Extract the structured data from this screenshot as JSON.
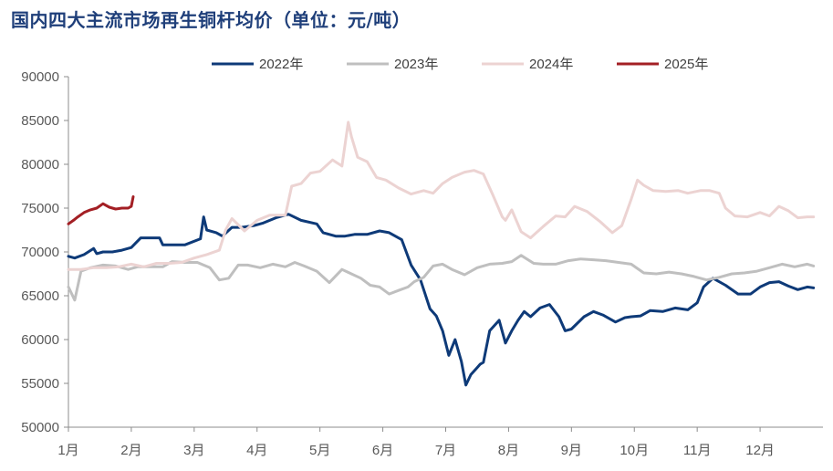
{
  "title": "国内四大主流市场再生铜杆均价（单位：元/吨）",
  "chart_data": {
    "type": "line",
    "title": "国内四大主流市场再生铜杆均价（单位：元/吨）",
    "unit": "元/吨",
    "xlabel": "",
    "ylabel": "",
    "ylim": [
      50000,
      90000
    ],
    "yticks": [
      50000,
      55000,
      60000,
      65000,
      70000,
      75000,
      80000,
      85000,
      90000
    ],
    "xlim": [
      0,
      12
    ],
    "xticks": [
      {
        "label": "1月",
        "pos": 0
      },
      {
        "label": "2月",
        "pos": 1
      },
      {
        "label": "3月",
        "pos": 2
      },
      {
        "label": "4月",
        "pos": 3
      },
      {
        "label": "5月",
        "pos": 4
      },
      {
        "label": "6月",
        "pos": 5
      },
      {
        "label": "7月",
        "pos": 6
      },
      {
        "label": "8月",
        "pos": 7
      },
      {
        "label": "9月",
        "pos": 8
      },
      {
        "label": "10月",
        "pos": 9
      },
      {
        "label": "11月",
        "pos": 10
      },
      {
        "label": "12月",
        "pos": 11
      }
    ],
    "grid": false,
    "legend_position": "top-center",
    "x_note": "x = month index (0 = start of Jan, 12 = end of Dec)",
    "series": [
      {
        "name": "2022年",
        "color": "#0e3a78",
        "x": [
          0,
          0.1,
          0.25,
          0.4,
          0.45,
          0.55,
          0.7,
          0.85,
          1.0,
          1.15,
          1.2,
          1.45,
          1.5,
          1.85,
          2.1,
          2.15,
          2.2,
          2.35,
          2.45,
          2.6,
          2.75,
          2.95,
          3.1,
          3.3,
          3.5,
          3.7,
          3.95,
          4.05,
          4.25,
          4.4,
          4.55,
          4.75,
          4.95,
          5.1,
          5.3,
          5.45,
          5.6,
          5.75,
          5.85,
          5.95,
          6.05,
          6.15,
          6.25,
          6.32,
          6.4,
          6.5,
          6.55,
          6.6,
          6.7,
          6.85,
          6.95,
          7.05,
          7.15,
          7.25,
          7.35,
          7.5,
          7.65,
          7.8,
          7.9,
          8.0,
          8.2,
          8.35,
          8.5,
          8.7,
          8.85,
          8.95,
          9.1,
          9.25,
          9.45,
          9.65,
          9.85,
          10.0,
          10.1,
          10.25,
          10.45,
          10.65,
          10.85,
          11.0,
          11.15,
          11.3,
          11.45,
          11.6,
          11.75,
          11.85
        ],
        "values": [
          69500,
          69300,
          69700,
          70400,
          69800,
          70000,
          70000,
          70200,
          70500,
          71600,
          71600,
          71600,
          70800,
          70800,
          71500,
          74000,
          72500,
          72200,
          71800,
          72800,
          72800,
          73000,
          73300,
          73900,
          74300,
          73600,
          73200,
          72200,
          71800,
          71800,
          72000,
          72000,
          72400,
          72200,
          71400,
          68500,
          66800,
          63500,
          62700,
          61000,
          58200,
          60000,
          57500,
          54800,
          56000,
          56800,
          57200,
          57400,
          61000,
          62200,
          59600,
          61000,
          62200,
          63200,
          62600,
          63600,
          64000,
          62600,
          61000,
          61200,
          62600,
          63200,
          62800,
          62000,
          62500,
          62600,
          62700,
          63300,
          63200,
          63600,
          63400,
          64200,
          66000,
          67000,
          66200,
          65200,
          65200,
          66000,
          66500,
          66600,
          66100,
          65700,
          66000,
          65900
        ]
      },
      {
        "name": "2023年",
        "color": "#bfbfbf",
        "x": [
          0,
          0.1,
          0.2,
          0.35,
          0.55,
          0.75,
          0.95,
          1.1,
          1.3,
          1.5,
          1.65,
          1.85,
          2.05,
          2.25,
          2.4,
          2.55,
          2.7,
          2.85,
          3.05,
          3.25,
          3.45,
          3.6,
          3.75,
          3.95,
          4.15,
          4.35,
          4.5,
          4.65,
          4.8,
          4.95,
          5.1,
          5.25,
          5.4,
          5.5,
          5.65,
          5.8,
          5.95,
          6.1,
          6.3,
          6.5,
          6.7,
          6.9,
          7.05,
          7.2,
          7.4,
          7.55,
          7.75,
          7.95,
          8.15,
          8.35,
          8.55,
          8.75,
          8.95,
          9.15,
          9.35,
          9.55,
          9.75,
          9.95,
          10.15,
          10.35,
          10.55,
          10.75,
          10.95,
          11.15,
          11.35,
          11.55,
          11.75,
          11.85
        ],
        "values": [
          66000,
          64500,
          67800,
          68200,
          68500,
          68400,
          68000,
          68300,
          68300,
          68300,
          68900,
          68800,
          68800,
          68200,
          66800,
          67000,
          68500,
          68500,
          68200,
          68600,
          68300,
          68800,
          68400,
          67800,
          66500,
          68000,
          67500,
          67000,
          66200,
          66000,
          65200,
          65600,
          66000,
          66600,
          67100,
          68400,
          68600,
          68000,
          67400,
          68200,
          68600,
          68700,
          68900,
          69600,
          68700,
          68600,
          68600,
          69000,
          69200,
          69100,
          69000,
          68800,
          68600,
          67600,
          67500,
          67700,
          67500,
          67200,
          66800,
          67100,
          67500,
          67600,
          67800,
          68200,
          68600,
          68300,
          68600,
          68400
        ]
      },
      {
        "name": "2024年",
        "color": "#ecd3d2",
        "x": [
          0,
          0.2,
          0.4,
          0.6,
          0.8,
          1.0,
          1.2,
          1.4,
          1.6,
          1.8,
          2.0,
          2.2,
          2.4,
          2.5,
          2.6,
          2.8,
          3.0,
          3.2,
          3.45,
          3.55,
          3.7,
          3.85,
          4.0,
          4.2,
          4.35,
          4.45,
          4.5,
          4.6,
          4.75,
          4.9,
          5.05,
          5.25,
          5.45,
          5.65,
          5.8,
          5.95,
          6.1,
          6.3,
          6.45,
          6.6,
          6.75,
          6.9,
          6.95,
          7.05,
          7.2,
          7.35,
          7.55,
          7.75,
          7.9,
          8.05,
          8.25,
          8.45,
          8.65,
          8.8,
          8.95,
          9.05,
          9.15,
          9.3,
          9.5,
          9.7,
          9.85,
          10.05,
          10.2,
          10.35,
          10.45,
          10.6,
          10.8,
          11.0,
          11.15,
          11.3,
          11.45,
          11.6,
          11.75,
          11.85
        ],
        "values": [
          68000,
          68000,
          68200,
          68200,
          68300,
          68600,
          68300,
          68700,
          68700,
          68800,
          69300,
          69700,
          70200,
          72500,
          73800,
          72400,
          73600,
          74200,
          74200,
          77500,
          77800,
          79000,
          79200,
          80500,
          79800,
          84800,
          83200,
          80800,
          80300,
          78500,
          78200,
          77300,
          76600,
          77000,
          76700,
          77800,
          78500,
          79100,
          79300,
          78900,
          76500,
          74000,
          73600,
          74800,
          72300,
          71600,
          72900,
          74100,
          74000,
          75200,
          74600,
          73500,
          72200,
          73000,
          76000,
          78200,
          77600,
          77000,
          76900,
          77000,
          76700,
          77000,
          77000,
          76700,
          75000,
          74100,
          74000,
          74500,
          74100,
          75200,
          74700,
          73900,
          74000,
          74000
        ]
      },
      {
        "name": "2025年",
        "color": "#a31f24",
        "x": [
          0,
          0.08,
          0.15,
          0.25,
          0.35,
          0.45,
          0.55,
          0.65,
          0.75,
          0.85,
          0.95,
          1.0,
          1.03
        ],
        "values": [
          73200,
          73600,
          74000,
          74500,
          74800,
          75000,
          75500,
          75100,
          74900,
          75000,
          75000,
          75200,
          76300
        ]
      }
    ]
  }
}
